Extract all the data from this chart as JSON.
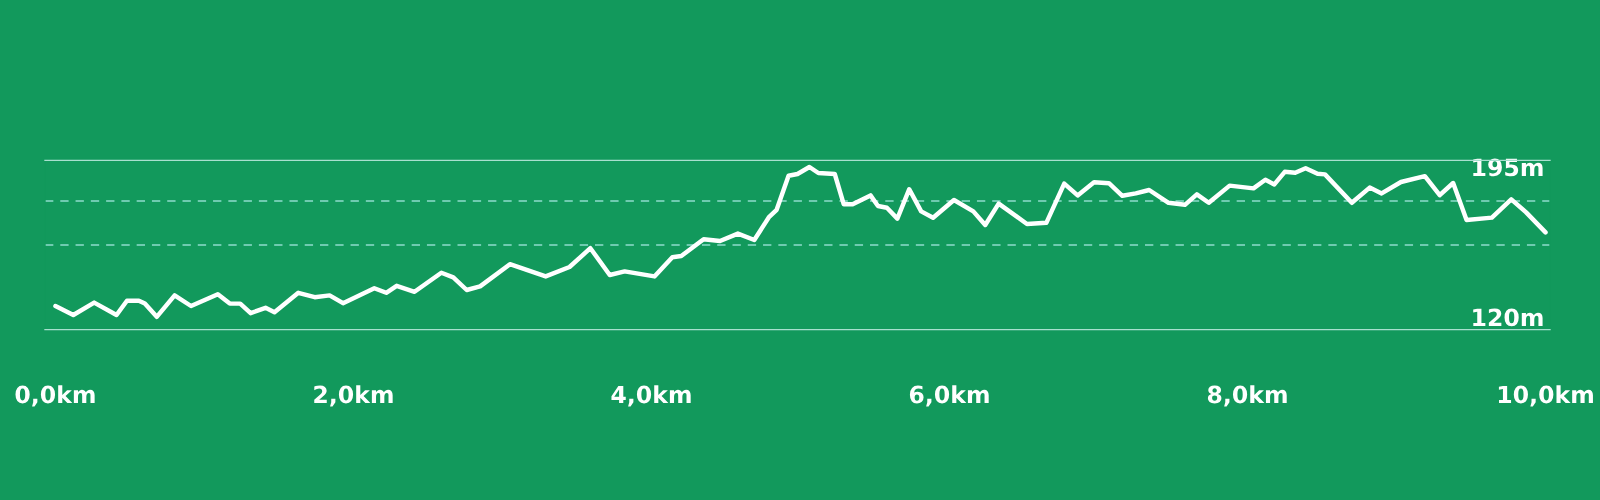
{
  "chart_data": {
    "type": "line",
    "x": [
      0.0,
      0.12,
      0.26,
      0.41,
      0.48,
      0.56,
      0.6,
      0.68,
      0.8,
      0.91,
      1.09,
      1.17,
      1.24,
      1.31,
      1.41,
      1.47,
      1.63,
      1.74,
      1.84,
      1.93,
      2.14,
      2.22,
      2.29,
      2.41,
      2.59,
      2.67,
      2.76,
      2.85,
      3.05,
      3.29,
      3.45,
      3.59,
      3.72,
      3.82,
      4.02,
      4.14,
      4.2,
      4.35,
      4.46,
      4.58,
      4.69,
      4.79,
      4.84,
      4.92,
      4.98,
      5.06,
      5.12,
      5.23,
      5.29,
      5.35,
      5.47,
      5.52,
      5.58,
      5.65,
      5.73,
      5.81,
      5.89,
      6.03,
      6.16,
      6.24,
      6.33,
      6.52,
      6.65,
      6.77,
      6.86,
      6.97,
      7.07,
      7.16,
      7.25,
      7.34,
      7.47,
      7.58,
      7.66,
      7.74,
      7.88,
      8.04,
      8.12,
      8.18,
      8.25,
      8.32,
      8.39,
      8.47,
      8.52,
      8.7,
      8.82,
      8.9,
      9.03,
      9.19,
      9.29,
      9.38,
      9.47,
      9.64,
      9.77,
      9.87,
      10.0
    ],
    "series": [
      {
        "color": "#ffffff",
        "values": [
          125.5,
          121.0,
          127.2,
          121.0,
          128.1,
          128.1,
          126.7,
          120.1,
          130.8,
          125.5,
          131.4,
          126.7,
          126.7,
          121.9,
          124.6,
          122.4,
          132.1,
          129.9,
          130.8,
          126.9,
          134.4,
          132.1,
          135.6,
          132.6,
          142.1,
          139.8,
          133.5,
          135.3,
          146.4,
          140.3,
          145.0,
          154.4,
          141.0,
          142.8,
          140.3,
          149.9,
          150.5,
          158.9,
          158.0,
          161.7,
          158.5,
          170.1,
          173.6,
          190.6,
          191.5,
          195.0,
          192.0,
          191.5,
          176.4,
          176.4,
          180.8,
          175.5,
          174.6,
          169.2,
          183.9,
          172.8,
          169.6,
          178.5,
          172.8,
          166.0,
          176.7,
          166.5,
          167.1,
          186.7,
          180.8,
          187.4,
          186.9,
          180.6,
          181.8,
          183.5,
          177.1,
          176.1,
          181.3,
          177.1,
          185.7,
          184.3,
          188.6,
          186.3,
          192.6,
          192.1,
          194.4,
          191.6,
          191.3,
          177.1,
          184.7,
          181.8,
          187.5,
          190.4,
          180.9,
          187.0,
          168.5,
          169.7,
          178.8,
          172.3,
          162.3
        ]
      }
    ],
    "xlim": [
      -0.07,
      10.03
    ],
    "xticks": [
      {
        "value": 0,
        "label": "0,0km"
      },
      {
        "value": 2,
        "label": "2,0km"
      },
      {
        "value": 4,
        "label": "4,0km"
      },
      {
        "value": 6,
        "label": "6,0km"
      },
      {
        "value": 8,
        "label": "8,0km"
      },
      {
        "value": 10,
        "label": "10,0km"
      }
    ],
    "ylim": [
      113.7,
      198.3
    ],
    "yticks": [
      {
        "value": 120,
        "label": "120m"
      },
      {
        "value": 195,
        "label": "195m"
      }
    ],
    "ref_lines": [
      {
        "axis": "y",
        "value": 178,
        "line_style": "dashed",
        "color": "#8fdccb"
      },
      {
        "axis": "y",
        "value": 156,
        "line_style": "dashed",
        "color": "#8fdccb"
      }
    ],
    "line_style": "solid",
    "marker": "none",
    "grid": false,
    "legend": false
  }
}
